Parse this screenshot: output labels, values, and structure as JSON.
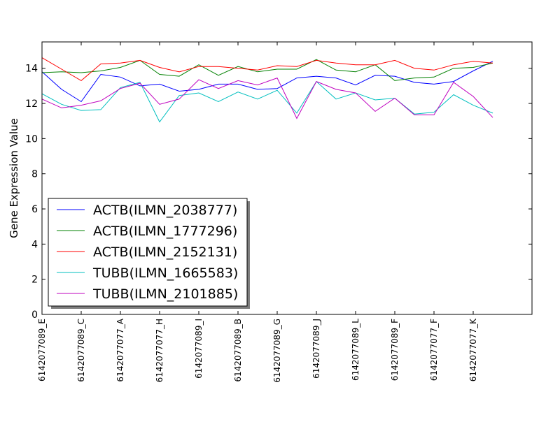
{
  "chart_data": {
    "type": "line",
    "title": "",
    "xlabel": "",
    "ylabel": "Gene Expression Value",
    "ylim": [
      0,
      15.5
    ],
    "yticks": [
      0,
      2,
      4,
      6,
      8,
      10,
      12,
      14
    ],
    "grid": false,
    "legend_position": "lower-left",
    "x": [
      0,
      1,
      2,
      3,
      4,
      5,
      6,
      7,
      8,
      9,
      10,
      11,
      12,
      13,
      14,
      15,
      16,
      17,
      18,
      19,
      20,
      21,
      22,
      23
    ],
    "xlim": [
      0,
      25
    ],
    "xtick_positions": [
      0,
      2,
      4,
      6,
      8,
      10,
      12,
      14,
      16,
      18,
      20,
      22
    ],
    "xtick_labels": [
      "6142077089_E",
      "6142077089_C",
      "6142077077_A",
      "6142077077_H",
      "6142077089_I",
      "6142077089_B",
      "6142077089_G",
      "6142077089_J",
      "6142077089_L",
      "6142077089_F",
      "6142077077_F",
      "6142077077_K"
    ],
    "series": [
      {
        "name": "ACTB(ILMN_2038777)",
        "color": "#0000ff",
        "values": [
          13.8,
          12.8,
          12.1,
          13.65,
          13.5,
          13.0,
          13.1,
          12.7,
          12.8,
          13.1,
          13.1,
          12.8,
          12.85,
          13.45,
          13.55,
          13.45,
          13.05,
          13.6,
          13.55,
          13.2,
          13.1,
          13.25,
          13.85,
          14.4
        ]
      },
      {
        "name": "ACTB(ILMN_1777296)",
        "color": "#008000",
        "values": [
          13.75,
          13.8,
          13.75,
          13.85,
          14.05,
          14.45,
          13.65,
          13.55,
          14.2,
          13.6,
          14.1,
          13.8,
          13.95,
          13.95,
          14.5,
          13.9,
          13.8,
          14.2,
          13.3,
          13.45,
          13.5,
          14.0,
          14.05,
          14.3
        ]
      },
      {
        "name": "ACTB(ILMN_2152131)",
        "color": "#ff0000",
        "values": [
          14.6,
          13.95,
          13.3,
          14.25,
          14.3,
          14.45,
          14.05,
          13.8,
          14.1,
          14.1,
          14.0,
          13.9,
          14.15,
          14.1,
          14.45,
          14.3,
          14.2,
          14.2,
          14.45,
          14.0,
          13.9,
          14.2,
          14.4,
          14.3
        ]
      },
      {
        "name": "TUBB(ILMN_1665583)",
        "color": "#00bfbf",
        "values": [
          12.55,
          11.95,
          11.6,
          11.65,
          12.9,
          13.2,
          10.95,
          12.45,
          12.6,
          12.1,
          12.65,
          12.25,
          12.75,
          11.45,
          13.25,
          12.25,
          12.6,
          12.2,
          12.3,
          11.4,
          11.5,
          12.5,
          11.9,
          11.45
        ]
      },
      {
        "name": "TUBB(ILMN_2101885)",
        "color": "#bf00bf",
        "values": [
          12.25,
          11.75,
          11.9,
          12.15,
          12.85,
          13.15,
          11.95,
          12.25,
          13.35,
          12.85,
          13.3,
          13.05,
          13.45,
          11.15,
          13.25,
          12.8,
          12.6,
          11.55,
          12.3,
          11.35,
          11.35,
          13.2,
          12.4,
          11.2
        ]
      }
    ]
  }
}
